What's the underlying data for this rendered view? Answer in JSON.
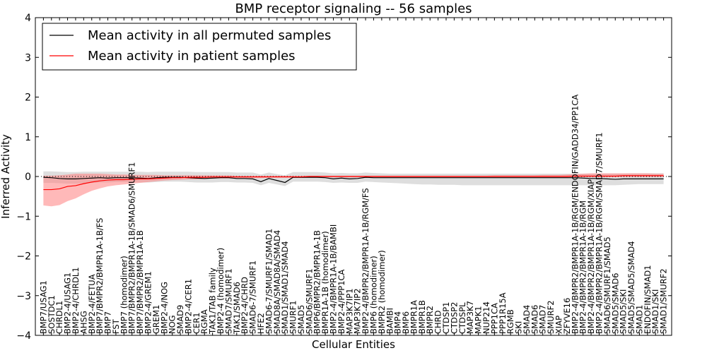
{
  "chart_data": {
    "type": "line",
    "title": "BMP receptor signaling -- 56 samples",
    "xlabel": "Cellular Entities",
    "ylabel": "Inferred Activity",
    "ylim": [
      -4,
      4
    ],
    "yticks": [
      "4",
      "3",
      "2",
      "1",
      "0",
      "−1",
      "−2",
      "−3",
      "−4"
    ],
    "legend_position": "top-left",
    "zero_reference": "dotted",
    "categories": [
      "BMP7/USAG1",
      "SOSTDC1",
      "CHRDL1",
      "BMP2-4/USAG1",
      "BMP2-4/CHRDL1",
      "AHSG",
      "BMP2-4/FETUA",
      "BMP7/BMPR2/BMPR1A-1B/FS",
      "BMP7",
      "FST",
      "BMP7 (homodimer)",
      "BMP7/BMPR2/BMPR1A-1B/SMAD6/SMURF1",
      "BMP7/BMPR2/BMPR1A-1B",
      "BMP2-4/GREM1",
      "GREM1",
      "BMP2-4/NOG",
      "NOG",
      "SMAD9",
      "BMP2-4/CER1",
      "CER1",
      "RGMA",
      "TAK1/TAB family",
      "BMP2-4 (homodimer)",
      "SMAD7/SMURF1",
      "TAK1/SMAD6",
      "BMP2-4/CHRD",
      "SMAD6-7/SMURF1",
      "HFE2",
      "SMAD6-7/SMURF1/SMAD1",
      "SMAD8A/SMAD8A/SMAD4",
      "SMAD1/SMAD1/SMAD4",
      "SMURF1",
      "SMAD5",
      "SMAD6/SMURF1",
      "BMP6/BMPR2/BMPR1A-1B",
      "BMPR1A-1B (homodimer)",
      "BMP2-4/BMPR1A-1B/BAMBI",
      "BMP2-4/PPP1CA",
      "MAP3K7IP1",
      "MAP3K7IP2",
      "BMP2-4/BMPR2/BMPR1A-1B/RGM/FS",
      "BMP6 (homodimer)",
      "BMPR2 (homodimer)",
      "BAMBI",
      "BMP4",
      "BMP6",
      "BMPR1A",
      "BMPR1B",
      "BMPR2",
      "CHRD",
      "CTDSP1",
      "CTDSP2",
      "CTDSPL",
      "MAP3K7",
      "MAPK1",
      "NUP214",
      "PPP1CA",
      "PPP1R15A",
      "RGMB",
      "SKI",
      "SMAD4",
      "SMAD6",
      "SMAD7",
      "SMURF2",
      "XIAP",
      "ZFYVE16",
      "BMP2-4/BMPR2/BMPR1A-1B/RGM/ENDOFIN/GADD34/PP1CA",
      "BMP2-4/BMPR2/BMPR1A-1B/RGM",
      "BMP2-4/BMPR2/BMPR1A-1B/RGM/XIAP",
      "BMP2-4/BMPR2/BMPR1A-1B/RGM/SMAD7/SMURF1",
      "SMAD6/SMURF1/SMAD5",
      "SMAD5/SMAD6",
      "SMAD5/SKI",
      "SMAD5/SMAD5/SMAD4",
      "SMAD1",
      "ENDOFIN/SMAD1",
      "SMAD1/SKI",
      "SMAD1/SMURF2"
    ],
    "series": [
      {
        "name": "Mean activity in all permuted samples",
        "color": "#000000",
        "band_color": "#c8c8c8",
        "values": [
          -0.02,
          -0.03,
          -0.05,
          -0.06,
          -0.06,
          -0.05,
          -0.04,
          -0.03,
          -0.04,
          -0.03,
          -0.03,
          -0.03,
          -0.04,
          -0.05,
          -0.03,
          -0.02,
          -0.02,
          -0.02,
          -0.03,
          -0.04,
          -0.05,
          -0.04,
          -0.03,
          -0.03,
          -0.05,
          -0.05,
          -0.06,
          -0.13,
          -0.05,
          -0.1,
          -0.15,
          -0.02,
          -0.02,
          -0.02,
          -0.02,
          -0.03,
          -0.06,
          -0.04,
          -0.06,
          -0.05,
          -0.02,
          -0.03,
          -0.03,
          -0.03,
          -0.03,
          -0.03,
          -0.03,
          -0.03,
          -0.03,
          -0.03,
          -0.03,
          -0.03,
          -0.03,
          -0.03,
          -0.03,
          -0.03,
          -0.03,
          -0.03,
          -0.03,
          -0.03,
          -0.03,
          -0.03,
          -0.03,
          -0.03,
          -0.03,
          -0.03,
          -0.03,
          -0.04,
          -0.05,
          -0.05,
          -0.06,
          -0.07,
          -0.06,
          -0.06,
          -0.06,
          -0.06,
          -0.06,
          -0.06
        ],
        "lower": [
          -0.16,
          -0.16,
          -0.17,
          -0.18,
          -0.18,
          -0.17,
          -0.16,
          -0.15,
          -0.15,
          -0.14,
          -0.14,
          -0.14,
          -0.15,
          -0.15,
          -0.14,
          -0.13,
          -0.13,
          -0.13,
          -0.14,
          -0.15,
          -0.15,
          -0.15,
          -0.14,
          -0.14,
          -0.15,
          -0.15,
          -0.16,
          -0.22,
          -0.16,
          -0.2,
          -0.24,
          -0.13,
          -0.13,
          -0.13,
          -0.13,
          -0.14,
          -0.16,
          -0.15,
          -0.16,
          -0.16,
          -0.13,
          -0.14,
          -0.15,
          -0.16,
          -0.17,
          -0.18,
          -0.19,
          -0.2,
          -0.2,
          -0.21,
          -0.21,
          -0.21,
          -0.22,
          -0.22,
          -0.22,
          -0.22,
          -0.22,
          -0.22,
          -0.22,
          -0.22,
          -0.22,
          -0.22,
          -0.22,
          -0.22,
          -0.22,
          -0.22,
          -0.22,
          -0.22,
          -0.22,
          -0.22,
          -0.22,
          -0.22,
          -0.21,
          -0.2,
          -0.19,
          -0.19,
          -0.19,
          -0.19
        ],
        "upper": [
          0.13,
          0.13,
          0.12,
          0.11,
          0.11,
          0.12,
          0.12,
          0.12,
          0.12,
          0.12,
          0.12,
          0.12,
          0.12,
          0.11,
          0.12,
          0.12,
          0.12,
          0.12,
          0.12,
          0.11,
          0.11,
          0.11,
          0.11,
          0.11,
          0.1,
          0.1,
          0.1,
          0.05,
          0.1,
          0.06,
          0.03,
          0.11,
          0.11,
          0.11,
          0.11,
          0.1,
          0.08,
          0.09,
          0.08,
          0.08,
          0.1,
          0.09,
          0.08,
          0.07,
          0.07,
          0.07,
          0.07,
          0.07,
          0.07,
          0.07,
          0.07,
          0.07,
          0.07,
          0.07,
          0.07,
          0.07,
          0.07,
          0.07,
          0.07,
          0.07,
          0.07,
          0.07,
          0.07,
          0.07,
          0.07,
          0.07,
          0.07,
          0.07,
          0.07,
          0.07,
          0.07,
          0.07,
          0.07,
          0.08,
          0.08,
          0.08,
          0.08,
          0.08
        ]
      },
      {
        "name": "Mean activity in patient samples",
        "color": "#ff0000",
        "band_color": "#ff8080",
        "values": [
          -0.33,
          -0.33,
          -0.31,
          -0.25,
          -0.23,
          -0.18,
          -0.14,
          -0.11,
          -0.09,
          -0.08,
          -0.08,
          -0.07,
          -0.06,
          -0.06,
          -0.05,
          -0.04,
          -0.03,
          -0.03,
          -0.02,
          -0.02,
          -0.02,
          -0.01,
          -0.01,
          -0.01,
          -0.01,
          -0.01,
          -0.01,
          -0.01,
          -0.01,
          -0.01,
          -0.01,
          -0.01,
          -0.01,
          0.0,
          0.0,
          0.0,
          0.0,
          0.0,
          0.0,
          0.0,
          0.0,
          0.0,
          0.0,
          0.0,
          0.0,
          0.0,
          0.0,
          0.0,
          0.0,
          0.0,
          0.0,
          0.0,
          0.0,
          0.0,
          0.0,
          0.0,
          0.0,
          0.0,
          0.0,
          0.0,
          0.0,
          0.0,
          0.0,
          0.0,
          0.0,
          0.0,
          0.01,
          0.01,
          0.01,
          0.01,
          0.01,
          0.01,
          0.02,
          0.02,
          0.02,
          0.02,
          0.02,
          0.02
        ],
        "lower": [
          -0.73,
          -0.75,
          -0.72,
          -0.62,
          -0.55,
          -0.45,
          -0.36,
          -0.3,
          -0.25,
          -0.22,
          -0.2,
          -0.18,
          -0.16,
          -0.14,
          -0.12,
          -0.1,
          -0.09,
          -0.08,
          -0.07,
          -0.07,
          -0.06,
          -0.05,
          -0.05,
          -0.05,
          -0.04,
          -0.04,
          -0.04,
          -0.04,
          -0.03,
          -0.03,
          -0.03,
          -0.03,
          -0.03,
          -0.02,
          -0.02,
          -0.02,
          -0.02,
          -0.02,
          -0.02,
          -0.02,
          -0.02,
          -0.02,
          -0.02,
          -0.02,
          -0.02,
          -0.02,
          -0.02,
          -0.02,
          -0.02,
          -0.02,
          -0.02,
          -0.02,
          -0.02,
          -0.02,
          -0.02,
          -0.02,
          -0.02,
          -0.02,
          -0.02,
          -0.02,
          -0.02,
          -0.02,
          -0.02,
          -0.02,
          -0.02,
          -0.02,
          -0.02,
          -0.02,
          -0.02,
          -0.02,
          -0.02,
          -0.02,
          -0.01,
          -0.01,
          -0.01,
          -0.01,
          -0.01,
          -0.01
        ],
        "upper": [
          0.02,
          0.02,
          0.03,
          0.05,
          0.07,
          0.07,
          0.07,
          0.07,
          0.06,
          0.05,
          0.05,
          0.04,
          0.04,
          0.04,
          0.04,
          0.03,
          0.03,
          0.03,
          0.03,
          0.03,
          0.03,
          0.03,
          0.03,
          0.03,
          0.02,
          0.02,
          0.02,
          0.02,
          0.02,
          0.02,
          0.02,
          0.02,
          0.02,
          0.02,
          0.02,
          0.02,
          0.02,
          0.02,
          0.02,
          0.02,
          0.02,
          0.02,
          0.02,
          0.02,
          0.02,
          0.02,
          0.02,
          0.02,
          0.02,
          0.02,
          0.02,
          0.02,
          0.02,
          0.02,
          0.02,
          0.02,
          0.03,
          0.03,
          0.03,
          0.03,
          0.03,
          0.03,
          0.04,
          0.04,
          0.04,
          0.05,
          0.06,
          0.07,
          0.08,
          0.08,
          0.08,
          0.08,
          0.08,
          0.08,
          0.08,
          0.08,
          0.07,
          0.07
        ]
      }
    ]
  }
}
